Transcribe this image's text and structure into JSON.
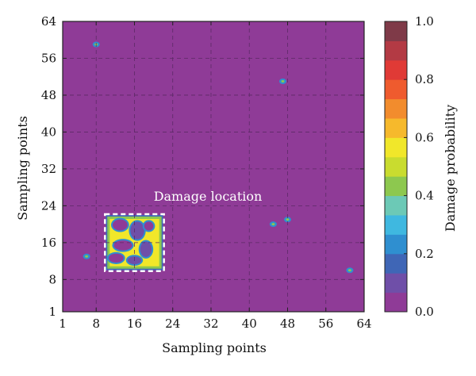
{
  "chart_data": {
    "type": "heatmap",
    "xlabel": "Sampling points",
    "ylabel": "Sampling points",
    "colorbar_label": "Damage probability",
    "xlim": [
      1,
      64
    ],
    "ylim": [
      1,
      64
    ],
    "x_ticks": [
      "1",
      "8",
      "16",
      "24",
      "32",
      "40",
      "48",
      "56",
      "64"
    ],
    "y_ticks": [
      "1",
      "8",
      "16",
      "24",
      "32",
      "40",
      "48",
      "56",
      "64"
    ],
    "x_tick_values": [
      1,
      8,
      16,
      24,
      32,
      40,
      48,
      56,
      64
    ],
    "y_tick_values": [
      1,
      8,
      16,
      24,
      32,
      40,
      48,
      56,
      64
    ],
    "colorbar_range": [
      0.0,
      1.0
    ],
    "colorbar_ticks": [
      "0.0",
      "0.2",
      "0.4",
      "0.6",
      "0.8",
      "1.0"
    ],
    "colorbar_tick_values": [
      0.0,
      0.2,
      0.4,
      0.6,
      0.8,
      1.0
    ],
    "colorbar_colors": [
      "#8f3b97",
      "#6f4fa8",
      "#3f66b6",
      "#2f8fd0",
      "#3fb8e0",
      "#6cc9b6",
      "#8dc84f",
      "#c9dc2f",
      "#f1e72a",
      "#f6b92c",
      "#f28c2d",
      "#ef5b2e",
      "#e03a36",
      "#b33a44",
      "#7f3a48"
    ],
    "background_value": 0.0,
    "grid": true,
    "annotation": {
      "text": "Damage location",
      "x_range": [
        10,
        22
      ],
      "y_range": [
        10,
        22
      ]
    },
    "damage_region": {
      "x_range": [
        10,
        22
      ],
      "y_range": [
        10,
        22
      ],
      "peak_probability": 0.55
    },
    "hotspots": [
      {
        "x": 8,
        "y": 59,
        "value": 0.25
      },
      {
        "x": 47,
        "y": 51,
        "value": 0.25
      },
      {
        "x": 45,
        "y": 20,
        "value": 0.25
      },
      {
        "x": 48,
        "y": 21,
        "value": 0.25
      },
      {
        "x": 6,
        "y": 13,
        "value": 0.25
      },
      {
        "x": 61,
        "y": 10,
        "value": 0.25
      }
    ]
  }
}
